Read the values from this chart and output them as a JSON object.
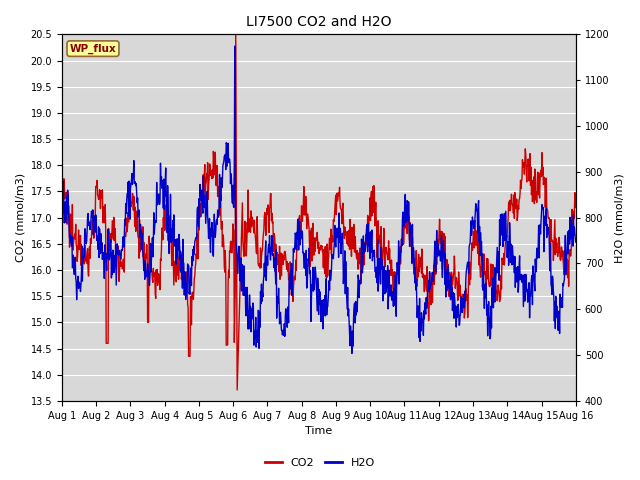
{
  "title": "LI7500 CO2 and H2O",
  "xlabel": "Time",
  "ylabel_left": "CO2 (mmol/m3)",
  "ylabel_right": "H2O (mmol/m3)",
  "co2_ylim": [
    13.5,
    20.5
  ],
  "h2o_ylim": [
    400,
    1200
  ],
  "co2_yticks": [
    13.5,
    14.0,
    14.5,
    15.0,
    15.5,
    16.0,
    16.5,
    17.0,
    17.5,
    18.0,
    18.5,
    19.0,
    19.5,
    20.0,
    20.5
  ],
  "h2o_yticks": [
    400,
    500,
    600,
    700,
    800,
    900,
    1000,
    1100,
    1200
  ],
  "xtick_labels": [
    "Aug 1",
    "Aug 2",
    "Aug 3",
    "Aug 4",
    "Aug 5",
    "Aug 6",
    "Aug 7",
    "Aug 8",
    "Aug 9",
    "Aug 10",
    "Aug 11",
    "Aug 12",
    "Aug 13",
    "Aug 14",
    "Aug 15",
    "Aug 16"
  ],
  "co2_color": "#cc0000",
  "h2o_color": "#0000cc",
  "bg_color": "#d8d8d8",
  "label_box_text": "WP_flux",
  "label_box_facecolor": "#ffff99",
  "label_box_edgecolor": "#996633",
  "label_box_textcolor": "#880000",
  "legend_co2": "CO2",
  "legend_h2o": "H2O",
  "line_width": 1.0,
  "title_fontsize": 10,
  "axis_label_fontsize": 8,
  "tick_fontsize": 7,
  "legend_fontsize": 8
}
